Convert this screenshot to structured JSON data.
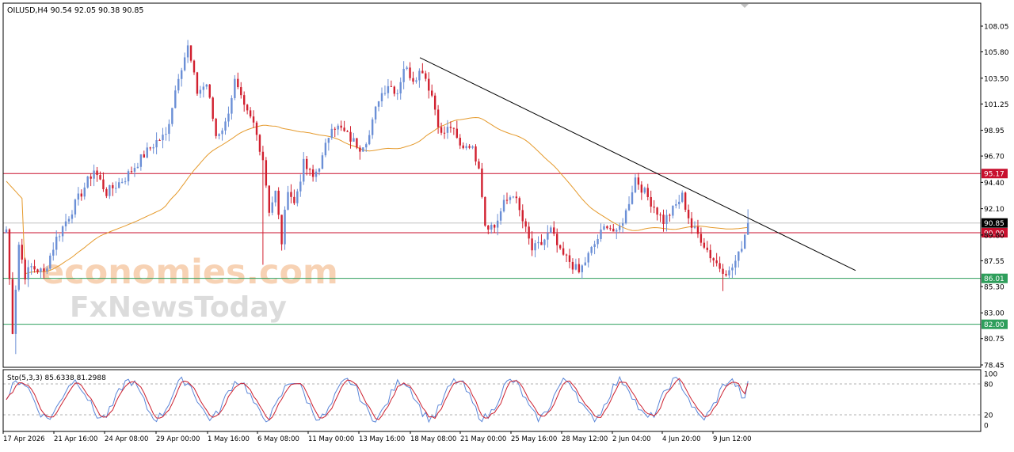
{
  "header": {
    "symbol_line": "OILUSD,H4  90.54 92.05 90.38 90.85"
  },
  "watermark": {
    "line1": "economies.com",
    "line2": "FxNewsToday"
  },
  "indicator": {
    "label": "Sto(5,3,3) 85.6338 81.2988",
    "ticks": [
      "100",
      "80",
      "20",
      "0"
    ]
  },
  "colors": {
    "bull": "#6b8fd6",
    "bear": "#d1202f",
    "ma": "#e59a2c",
    "trendline": "#000000",
    "resistance": "#c8102e",
    "support": "#2e9e5b",
    "stoch_main": "#5a86d8",
    "stoch_signal": "#cc1f2e"
  },
  "chart_data": {
    "type": "candlestick",
    "symbol": "OILUSD",
    "timeframe": "H4",
    "ohlc_last": {
      "open": 90.54,
      "high": 92.05,
      "low": 90.38,
      "close": 90.85
    },
    "ylim": [
      78.45,
      108.05
    ],
    "y_ticks": [
      108.05,
      105.8,
      103.5,
      101.25,
      98.95,
      96.7,
      94.4,
      92.1,
      89.8,
      87.55,
      85.3,
      83.0,
      80.75,
      78.45
    ],
    "x_labels": [
      "17 Apr 2026",
      "21 Apr 16:00",
      "24 Apr 08:00",
      "29 Apr 00:00",
      "1 May 16:00",
      "6 May 08:00",
      "11 May 00:00",
      "13 May 16:00",
      "18 May 08:00",
      "21 May 00:00",
      "25 May 16:00",
      "28 May 12:00",
      "2 Jun 04:00",
      "4 Jun 20:00",
      "9 Jun 12:00"
    ],
    "price_levels": [
      {
        "value": 95.17,
        "label": "95.17",
        "kind": "resistance"
      },
      {
        "value": 90.85,
        "label": "90.85",
        "kind": "current"
      },
      {
        "value": 90.0,
        "label": "90.00",
        "kind": "resistance"
      },
      {
        "value": 86.01,
        "label": "86.01",
        "kind": "support"
      },
      {
        "value": 82.0,
        "label": "82.00",
        "kind": "support"
      }
    ],
    "trendline": {
      "from": {
        "x": "18 May 08:00",
        "y": 105.3
      },
      "to": {
        "x": "9 Jun 12:00",
        "y": 86.7
      }
    },
    "price_path": [
      [
        0,
        90.3
      ],
      [
        2,
        81.5
      ],
      [
        4,
        89.0
      ],
      [
        6,
        86.3
      ],
      [
        8,
        87.0
      ],
      [
        12,
        86.5
      ],
      [
        16,
        89.5
      ],
      [
        22,
        92.5
      ],
      [
        28,
        95.5
      ],
      [
        32,
        93.5
      ],
      [
        38,
        94.8
      ],
      [
        44,
        96.8
      ],
      [
        48,
        98.0
      ],
      [
        51,
        98.5
      ],
      [
        55,
        103.8
      ],
      [
        58,
        106.2
      ],
      [
        61,
        102.3
      ],
      [
        64,
        103.0
      ],
      [
        67,
        98.5
      ],
      [
        70,
        99.5
      ],
      [
        73,
        103.2
      ],
      [
        76,
        100.8
      ],
      [
        79,
        99.5
      ],
      [
        82,
        96.5
      ],
      [
        84,
        92.0
      ],
      [
        86,
        93.5
      ],
      [
        88,
        89.2
      ],
      [
        90,
        94.0
      ],
      [
        92,
        92.5
      ],
      [
        95,
        96.0
      ],
      [
        98,
        94.8
      ],
      [
        101,
        96.5
      ],
      [
        104,
        99.5
      ],
      [
        107,
        99.0
      ],
      [
        110,
        98.2
      ],
      [
        113,
        97.5
      ],
      [
        116,
        98.5
      ],
      [
        119,
        101.8
      ],
      [
        122,
        103.0
      ],
      [
        125,
        102.3
      ],
      [
        127,
        104.5
      ],
      [
        130,
        103.5
      ],
      [
        133,
        104.3
      ],
      [
        136,
        102.0
      ],
      [
        139,
        98.5
      ],
      [
        142,
        99.3
      ],
      [
        145,
        97.5
      ],
      [
        148,
        97.8
      ],
      [
        151,
        96.0
      ],
      [
        153,
        90.8
      ],
      [
        156,
        90.5
      ],
      [
        159,
        92.5
      ],
      [
        162,
        93.5
      ],
      [
        165,
        91.0
      ],
      [
        168,
        88.5
      ],
      [
        171,
        89.0
      ],
      [
        174,
        90.2
      ],
      [
        177,
        88.2
      ],
      [
        180,
        87.5
      ],
      [
        183,
        86.5
      ],
      [
        186,
        88.0
      ],
      [
        189,
        89.5
      ],
      [
        192,
        90.8
      ],
      [
        195,
        89.8
      ],
      [
        198,
        91.8
      ],
      [
        201,
        94.8
      ],
      [
        204,
        93.5
      ],
      [
        207,
        92.3
      ],
      [
        210,
        91.0
      ],
      [
        213,
        92.0
      ],
      [
        216,
        93.2
      ],
      [
        219,
        90.5
      ],
      [
        222,
        89.5
      ],
      [
        225,
        88.0
      ],
      [
        228,
        87.0
      ],
      [
        231,
        86.5
      ],
      [
        234,
        88.0
      ],
      [
        237,
        90.85
      ]
    ],
    "stochastic": {
      "k_period": 5,
      "d_period": 3,
      "slowing": 3,
      "main": 85.6338,
      "signal": 81.2988,
      "levels": [
        80,
        20
      ],
      "ylim": [
        0,
        100
      ]
    }
  }
}
